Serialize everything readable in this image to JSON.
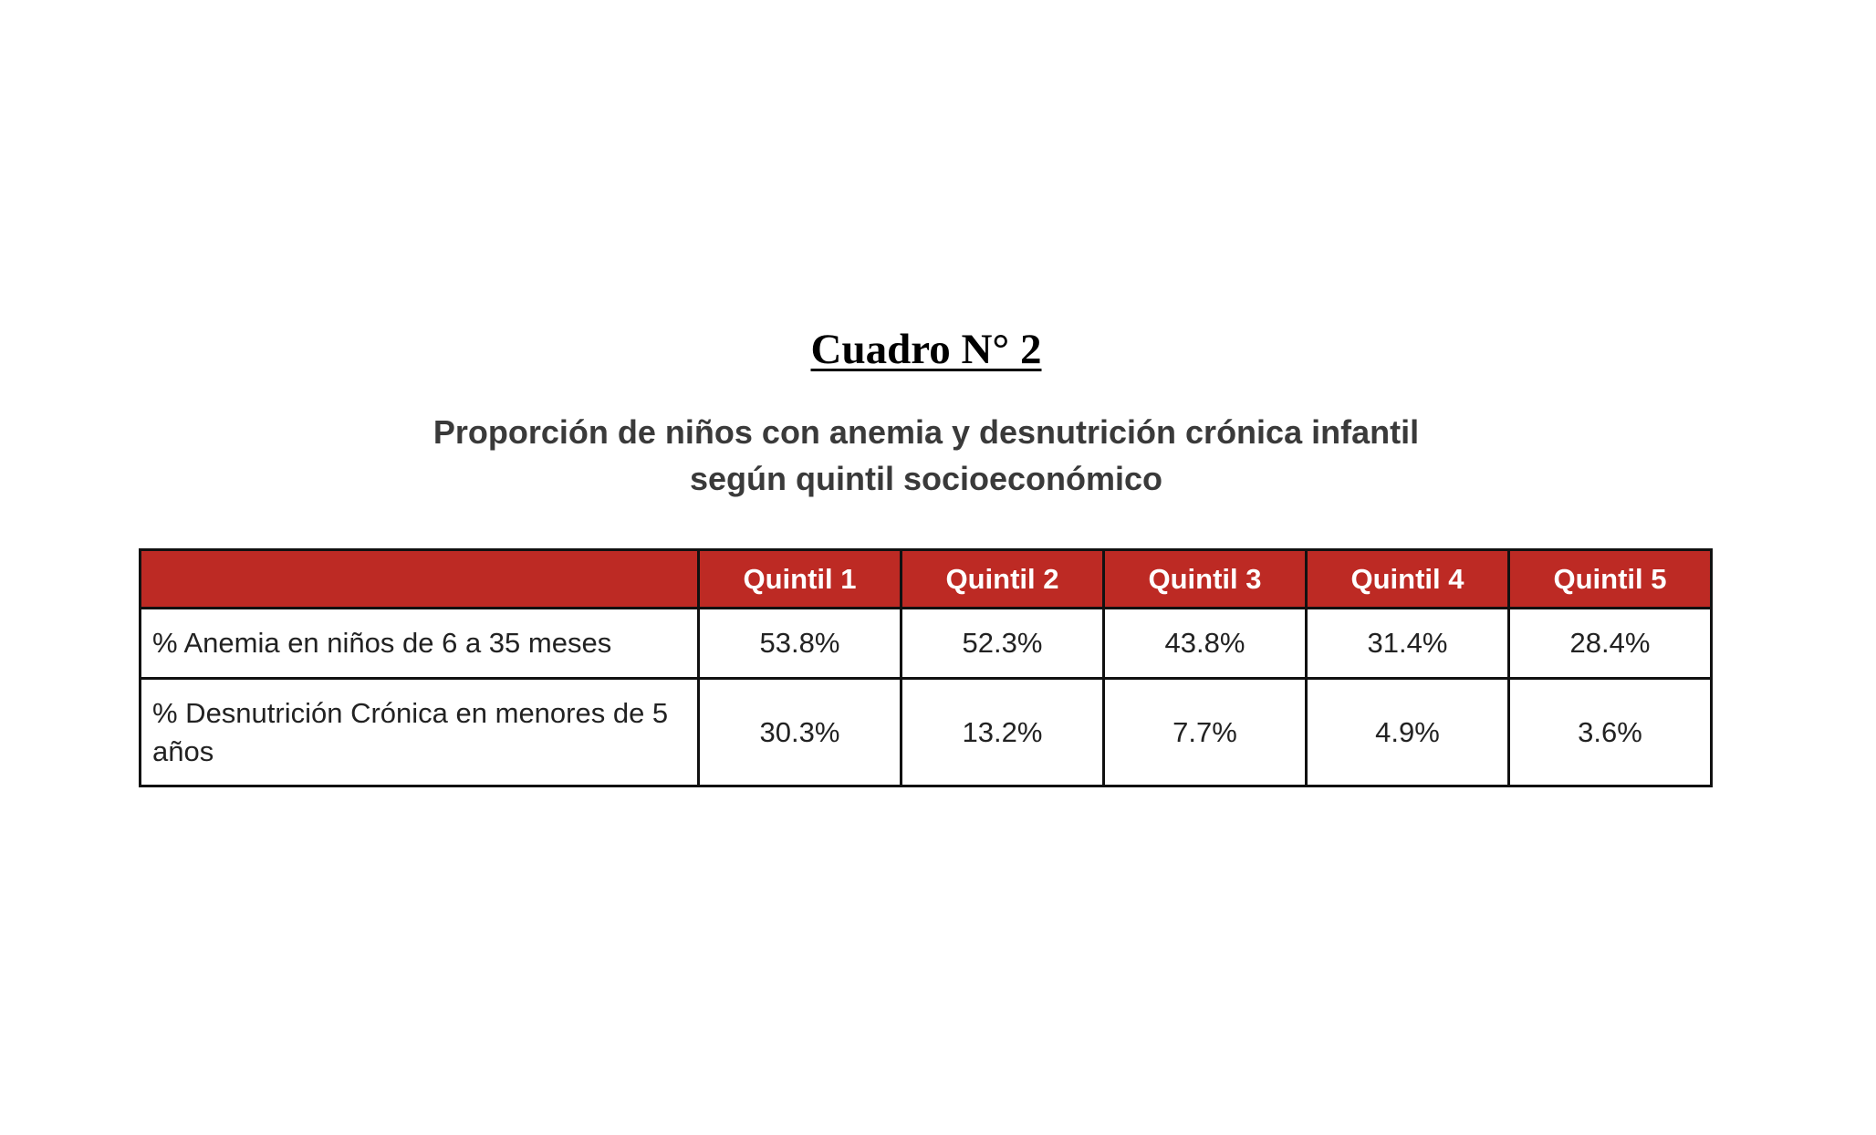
{
  "heading": "Cuadro N° 2",
  "subtitle": {
    "line1": "Proporción de niños con anemia y desnutrición crónica infantil",
    "line2": "según quintil socioeconómico"
  },
  "colors": {
    "header_bg": "#bd2a24",
    "header_text": "#ffffff",
    "border": "#111111"
  },
  "table": {
    "corner": "",
    "columns": [
      "Quintil 1",
      "Quintil 2",
      "Quintil 3",
      "Quintil 4",
      "Quintil 5"
    ],
    "rows": [
      {
        "label": "% Anemia en niños de 6 a 35 meses",
        "values": [
          "53.8%",
          "52.3%",
          "43.8%",
          "31.4%",
          "28.4%"
        ]
      },
      {
        "label": "% Desnutrición Crónica en menores de 5 años",
        "values": [
          "30.3%",
          "13.2%",
          "7.7%",
          "4.9%",
          "3.6%"
        ]
      }
    ]
  }
}
